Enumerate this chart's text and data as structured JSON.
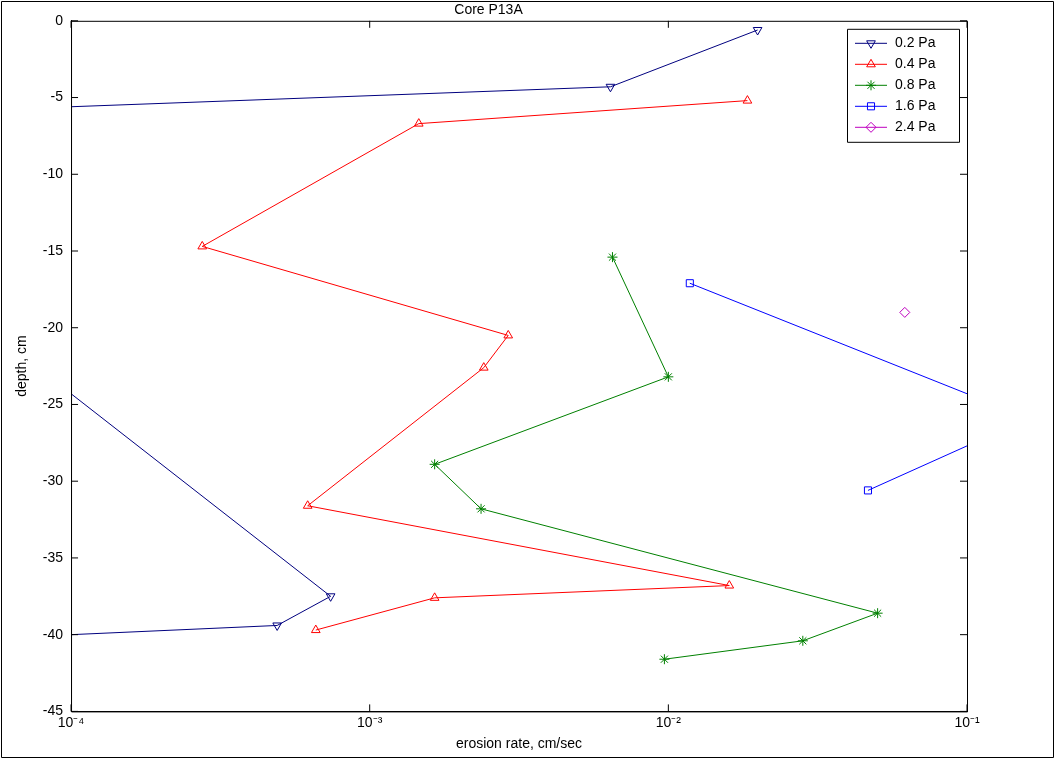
{
  "chart_data": {
    "type": "line",
    "title": "Core P13A",
    "xlabel": "erosion rate, cm/sec",
    "ylabel": "depth, cm",
    "log": "x",
    "xlim": [
      0.0001,
      0.1
    ],
    "xticks": [
      {
        "value": 0.0001,
        "label": "10⁻⁴"
      },
      {
        "value": 0.001,
        "label": "10⁻³"
      },
      {
        "value": 0.01,
        "label": "10⁻²"
      },
      {
        "value": 0.1,
        "label": "10⁻¹"
      }
    ],
    "ylim": [
      -45,
      0
    ],
    "yticks": [
      -45,
      -40,
      -35,
      -30,
      -25,
      -20,
      -15,
      -10,
      -5,
      0
    ],
    "grid": false,
    "legend": "top right",
    "line_style": "solid",
    "series": [
      {
        "name": "0.2 Pa",
        "color": "#00007f",
        "marker": "triangle-down",
        "x": [
          0.0199,
          0.0064,
          0.0001,
          null,
          0.0001,
          0.00074,
          0.00049,
          0.0001
        ],
        "values": [
          -0.6,
          -4.3,
          -5.6,
          null,
          -24.3,
          -37.5,
          -39.4,
          -40
        ]
      },
      {
        "name": "0.4 Pa",
        "color": "#ff0000",
        "marker": "triangle",
        "x": [
          0.0184,
          0.00146,
          0.000275,
          0.00291,
          0.00241,
          0.00062,
          0.016,
          0.00165,
          0.00066
        ],
        "values": [
          -5.2,
          -6.7,
          -14.7,
          -20.5,
          -22.6,
          -31.6,
          -36.8,
          -37.6,
          -39.7
        ]
      },
      {
        "name": "0.8 Pa",
        "color": "#008000",
        "marker": "cross",
        "x": [
          null,
          0.0065,
          0.01,
          0.00165,
          0.00236,
          0.0502,
          0.0282,
          0.0097
        ],
        "values": [
          null,
          -15.4,
          -23.2,
          -28.9,
          -31.8,
          -38.6,
          -40.4,
          -41.6
        ]
      },
      {
        "name": "1.6 Pa",
        "color": "#0000ff",
        "marker": "square",
        "x": [
          0.0118,
          0.1,
          null,
          0.1,
          0.0466
        ],
        "values": [
          -17.1,
          -24.3,
          null,
          -27.7,
          -30.6
        ]
      },
      {
        "name": "2.4 Pa",
        "color": "#bf00bf",
        "marker": "diamond",
        "x": [
          0.0619
        ],
        "values": [
          -19.0
        ]
      }
    ]
  }
}
